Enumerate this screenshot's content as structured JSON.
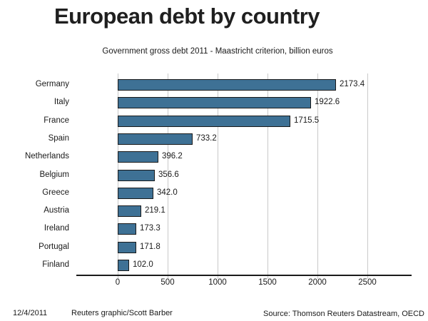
{
  "title": "European debt by country",
  "subtitle": "Government gross debt 2011 - Maastricht criterion, billion euros",
  "footer": {
    "date": "12/4/2011",
    "credit": "Reuters graphic/Scott Barber",
    "source": "Source: Thomson Reuters Datastream, OECD"
  },
  "colors": {
    "bar_fill": "#3E7195",
    "bar_border": "#1A1A1A",
    "gridline": "#C9C9C9",
    "axis": "#1A1A1A",
    "text": "#1A1A1A"
  },
  "chart_data": {
    "type": "bar",
    "orientation": "horizontal",
    "title": "European debt by country",
    "subtitle": "Government gross debt 2011 - Maastricht criterion, billion euros",
    "categories": [
      "Germany",
      "Italy",
      "France",
      "Spain",
      "Netherlands",
      "Belgium",
      "Greece",
      "Austria",
      "Ireland",
      "Portugal",
      "Finland"
    ],
    "values": [
      2173.4,
      1922.6,
      1715.5,
      733.2,
      396.2,
      356.6,
      342.0,
      219.1,
      173.3,
      171.8,
      102.0
    ],
    "value_decimals": 1,
    "xlabel": "",
    "ylabel": "",
    "xlim": [
      0,
      2940
    ],
    "xticks": [
      0,
      500,
      1000,
      1500,
      2000,
      2500
    ],
    "grid": true,
    "legend": false,
    "data_labels": true
  }
}
